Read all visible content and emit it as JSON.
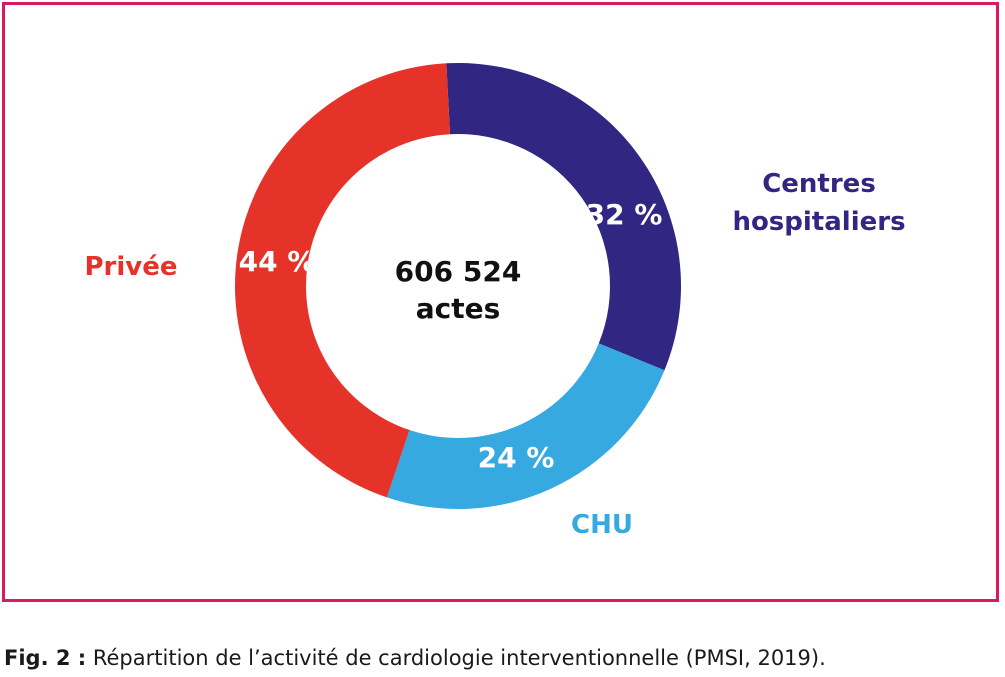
{
  "chart_data": {
    "type": "pie",
    "style": "donut",
    "center_label": [
      "606 524",
      "actes"
    ],
    "slices": [
      {
        "name": "Centres hospitaliers",
        "name_lines": [
          "Centres",
          "hospitaliers"
        ],
        "value": 32,
        "label": "32 %",
        "color": "#312783"
      },
      {
        "name": "CHU",
        "name_lines": [
          "CHU"
        ],
        "value": 24,
        "label": "24 %",
        "color": "#36a9e1"
      },
      {
        "name": "Privée",
        "name_lines": [
          "Privée"
        ],
        "value": 44,
        "label": "44 %",
        "color": "#e5332a"
      }
    ]
  },
  "caption": {
    "fig": "Fig. 2 :",
    "text": " Répartition de l’activité de cardiologie interventionnelle (PMSI, 2019)."
  },
  "colors": {
    "frame": "#d81b60"
  }
}
